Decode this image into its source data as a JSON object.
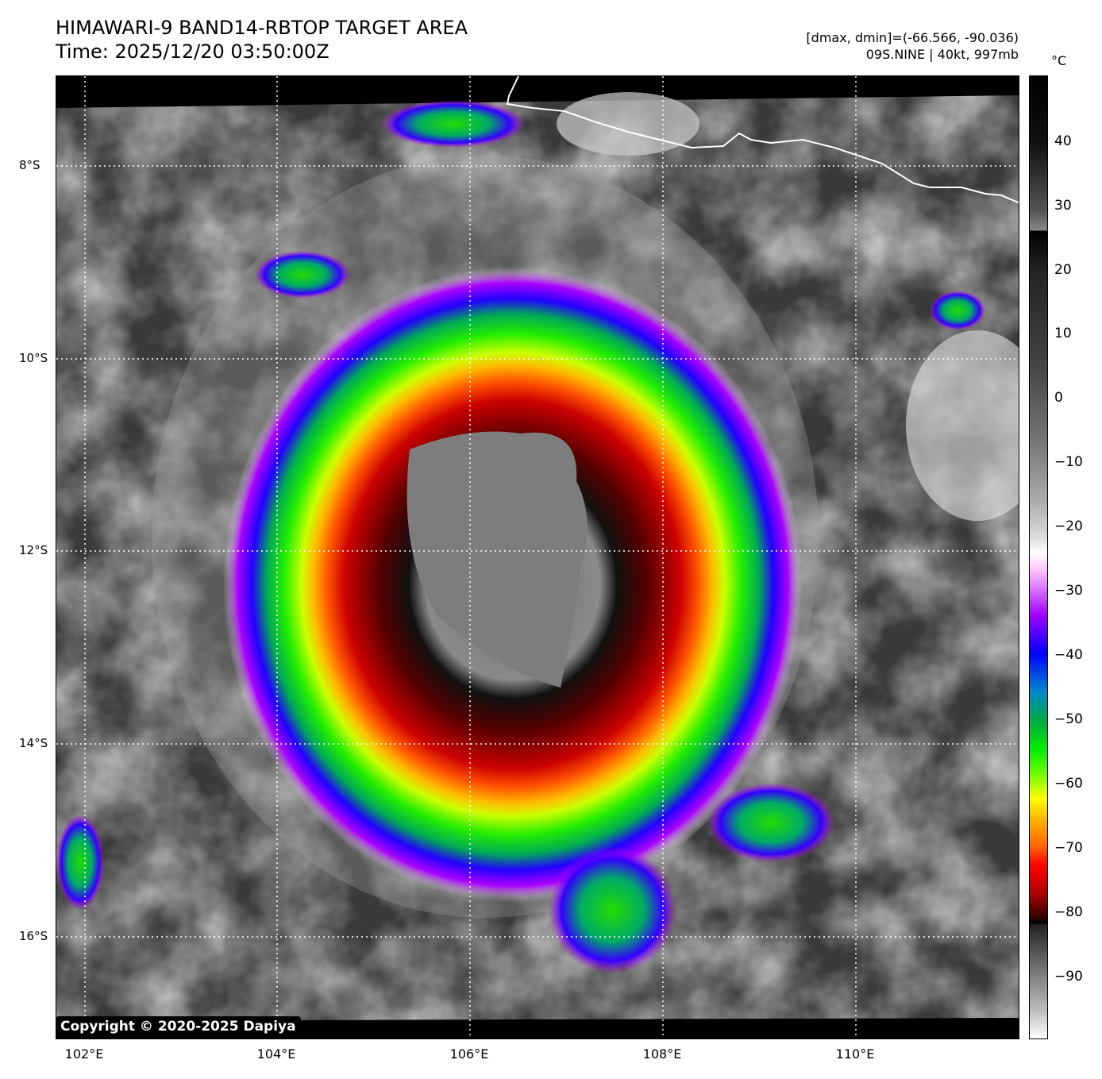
{
  "header": {
    "title_line1": "HIMAWARI-9 BAND14-RBTOP TARGET AREA",
    "title_line2": "Time: 2025/12/20 03:50:00Z",
    "meta_line1": "[dmax, dmin]=(-66.566, -90.036)",
    "meta_line2": "09S.NINE | 40kt, 997mb"
  },
  "map": {
    "lon_ticks": [
      "102°E",
      "104°E",
      "106°E",
      "108°E",
      "110°E"
    ],
    "lat_ticks": [
      "8°S",
      "10°S",
      "12°S",
      "14°S",
      "16°S"
    ],
    "grid_style": "dotted-white",
    "coastline_color": "#ffffff"
  },
  "colorbar": {
    "unit": "°C",
    "ticks": [
      "40",
      "30",
      "20",
      "10",
      "0",
      "−10",
      "−20",
      "−30",
      "−40",
      "−50",
      "−60",
      "−70",
      "−80",
      "−90"
    ]
  },
  "copyright": "Copyright © 2020-2025 Dapiya"
}
